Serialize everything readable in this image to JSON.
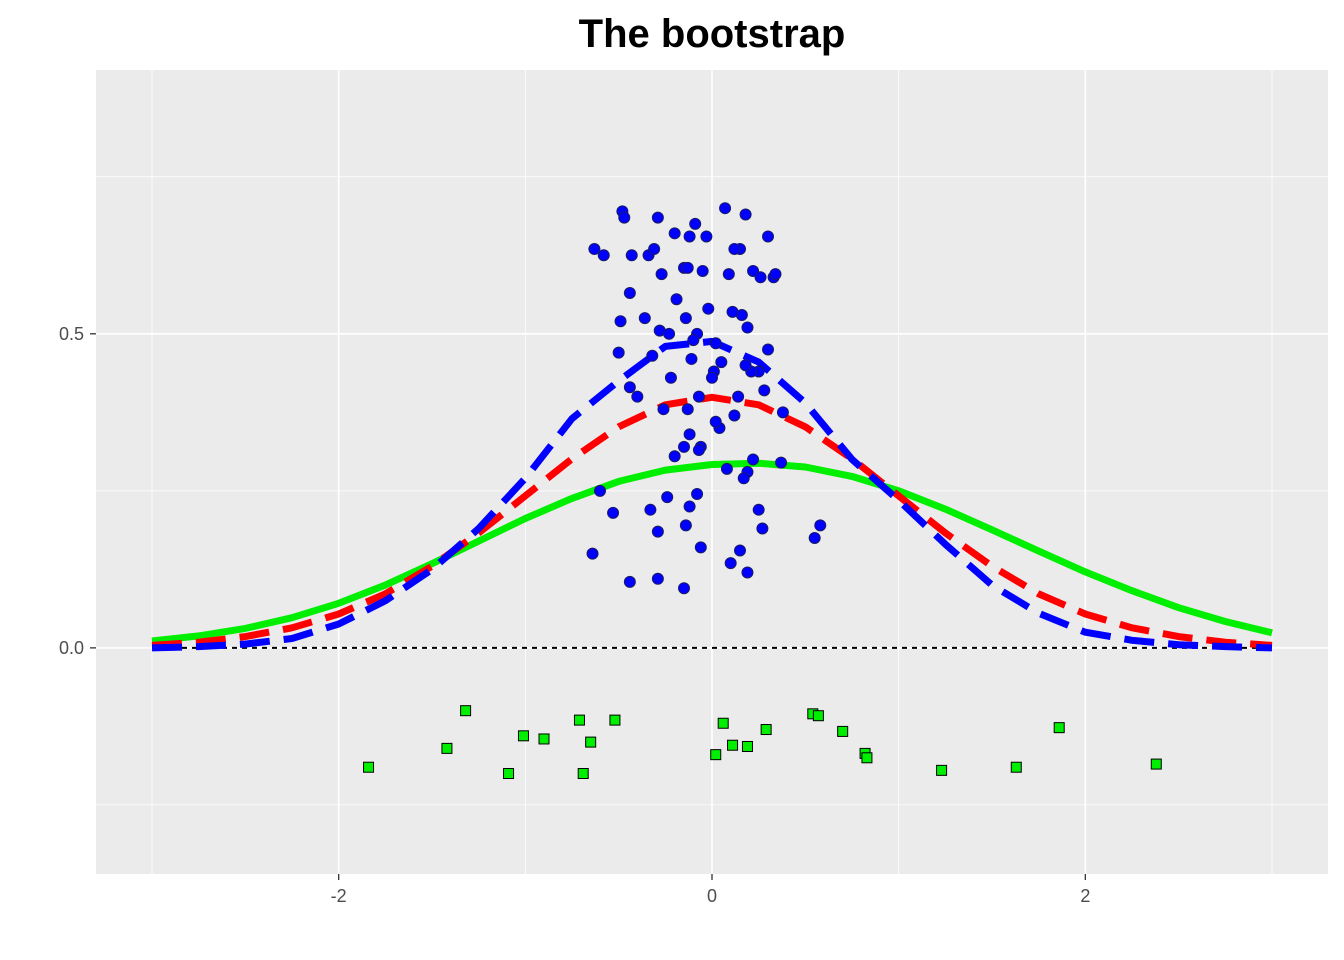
{
  "chart_data": {
    "type": "scatter",
    "title": "The bootstrap",
    "xlabel": "",
    "ylabel": "",
    "xlim": [
      -3.3,
      3.3
    ],
    "ylim": [
      -0.36,
      0.92
    ],
    "x_ticks": [
      -2,
      0,
      2
    ],
    "x_tick_labels": [
      "-2",
      "0",
      "2"
    ],
    "y_ticks": [
      0.0,
      0.5
    ],
    "y_tick_labels": [
      "0.0",
      "0.5"
    ],
    "grid": true,
    "panel_background": "#ebebeb",
    "reference_line": {
      "y": 0.0,
      "style": "dashed",
      "color": "#000000"
    },
    "series": [
      {
        "kind": "line",
        "style": "solid",
        "color": "#00ee00",
        "x": [
          -3.0,
          -2.75,
          -2.5,
          -2.25,
          -2.0,
          -1.75,
          -1.5,
          -1.25,
          -1.0,
          -0.75,
          -0.5,
          -0.25,
          0.0,
          0.25,
          0.5,
          0.75,
          1.0,
          1.25,
          1.5,
          1.75,
          2.0,
          2.25,
          2.5,
          2.75,
          3.0
        ],
        "y": [
          0.011,
          0.019,
          0.031,
          0.048,
          0.071,
          0.1,
          0.134,
          0.17,
          0.206,
          0.238,
          0.265,
          0.283,
          0.292,
          0.294,
          0.288,
          0.273,
          0.25,
          0.221,
          0.188,
          0.154,
          0.121,
          0.091,
          0.064,
          0.042,
          0.024
        ]
      },
      {
        "kind": "line",
        "style": "dashed",
        "color": "#ff0000",
        "x": [
          -3.0,
          -2.75,
          -2.5,
          -2.25,
          -2.0,
          -1.75,
          -1.5,
          -1.25,
          -1.0,
          -0.75,
          -0.5,
          -0.25,
          0.0,
          0.25,
          0.5,
          0.75,
          1.0,
          1.25,
          1.5,
          1.75,
          2.0,
          2.25,
          2.5,
          2.75,
          3.0
        ],
        "y": [
          0.004,
          0.009,
          0.018,
          0.032,
          0.054,
          0.086,
          0.13,
          0.183,
          0.242,
          0.301,
          0.352,
          0.387,
          0.399,
          0.387,
          0.352,
          0.301,
          0.242,
          0.183,
          0.13,
          0.086,
          0.054,
          0.032,
          0.018,
          0.009,
          0.004
        ]
      },
      {
        "kind": "line",
        "style": "dashed",
        "color": "#0000ff",
        "x": [
          -3.0,
          -2.75,
          -2.5,
          -2.25,
          -2.0,
          -1.75,
          -1.5,
          -1.25,
          -1.0,
          -0.75,
          -0.5,
          -0.25,
          0.0,
          0.25,
          0.5,
          0.75,
          1.0,
          1.25,
          1.5,
          1.75,
          2.0,
          2.25,
          2.5,
          2.75,
          3.0
        ],
        "y": [
          0.0,
          0.002,
          0.006,
          0.015,
          0.038,
          0.075,
          0.125,
          0.19,
          0.27,
          0.365,
          0.425,
          0.48,
          0.488,
          0.455,
          0.39,
          0.3,
          0.235,
          0.165,
          0.1,
          0.055,
          0.025,
          0.012,
          0.005,
          0.002,
          0.0
        ]
      },
      {
        "kind": "points",
        "shape": "circle",
        "color": "#0000ff",
        "x": [
          -0.63,
          -0.48,
          -0.29,
          -0.09,
          0.07,
          0.18,
          0.3,
          -0.47,
          -0.34,
          -0.2,
          -0.12,
          -0.03,
          0.15,
          0.33,
          -0.58,
          -0.43,
          -0.31,
          -0.15,
          -0.05,
          0.12,
          0.22,
          0.34,
          -0.44,
          -0.27,
          -0.13,
          0.09,
          0.26,
          -0.49,
          -0.36,
          -0.19,
          -0.02,
          0.16,
          -0.5,
          -0.28,
          -0.08,
          0.11,
          0.3,
          -0.23,
          -0.14,
          0.02,
          0.19,
          -0.32,
          -0.1,
          0.05,
          0.25,
          -0.4,
          -0.22,
          0.01,
          0.21,
          -0.11,
          0.0,
          0.18,
          -0.44,
          -0.26,
          -0.07,
          0.14,
          0.28,
          -0.13,
          0.04,
          0.38,
          -0.12,
          0.12,
          -0.06,
          0.37,
          -0.15,
          0.02,
          0.22,
          -0.6,
          -0.53,
          -0.2,
          -0.07,
          0.08,
          0.19,
          0.58,
          -0.24,
          -0.08,
          0.17,
          0.55,
          -0.33,
          -0.12,
          0.25,
          -0.64,
          -0.06,
          0.15,
          -0.14,
          0.27,
          -0.29,
          0.1,
          -0.44,
          -0.29,
          -0.15,
          0.19
        ],
        "y": [
          0.635,
          0.695,
          0.685,
          0.675,
          0.7,
          0.69,
          0.655,
          0.685,
          0.625,
          0.66,
          0.655,
          0.655,
          0.635,
          0.59,
          0.625,
          0.625,
          0.635,
          0.605,
          0.6,
          0.635,
          0.6,
          0.595,
          0.565,
          0.595,
          0.605,
          0.595,
          0.59,
          0.52,
          0.525,
          0.555,
          0.54,
          0.53,
          0.47,
          0.505,
          0.5,
          0.535,
          0.475,
          0.5,
          0.525,
          0.485,
          0.51,
          0.465,
          0.49,
          0.455,
          0.44,
          0.4,
          0.43,
          0.44,
          0.44,
          0.46,
          0.43,
          0.45,
          0.415,
          0.38,
          0.4,
          0.4,
          0.41,
          0.38,
          0.35,
          0.375,
          0.34,
          0.37,
          0.32,
          0.295,
          0.32,
          0.36,
          0.3,
          0.25,
          0.215,
          0.305,
          0.315,
          0.285,
          0.28,
          0.195,
          0.24,
          0.245,
          0.27,
          0.175,
          0.22,
          0.225,
          0.22,
          0.15,
          0.16,
          0.155,
          0.195,
          0.19,
          0.185,
          0.135,
          0.105,
          0.11,
          0.095,
          0.12
        ]
      },
      {
        "kind": "points",
        "shape": "square",
        "color": "#00ee00",
        "x": [
          -1.84,
          -1.42,
          -1.32,
          -1.09,
          -1.01,
          -0.9,
          -0.71,
          -0.69,
          -0.65,
          -0.52,
          0.02,
          0.06,
          0.11,
          0.19,
          0.29,
          0.54,
          0.57,
          0.7,
          0.82,
          0.83,
          1.23,
          1.63,
          1.86,
          2.38
        ],
        "y": [
          -0.19,
          -0.16,
          -0.1,
          -0.2,
          -0.14,
          -0.145,
          -0.115,
          -0.2,
          -0.15,
          -0.115,
          -0.17,
          -0.12,
          -0.155,
          -0.157,
          -0.13,
          -0.105,
          -0.108,
          -0.133,
          -0.168,
          -0.175,
          -0.195,
          -0.19,
          -0.127,
          -0.185
        ]
      }
    ]
  }
}
